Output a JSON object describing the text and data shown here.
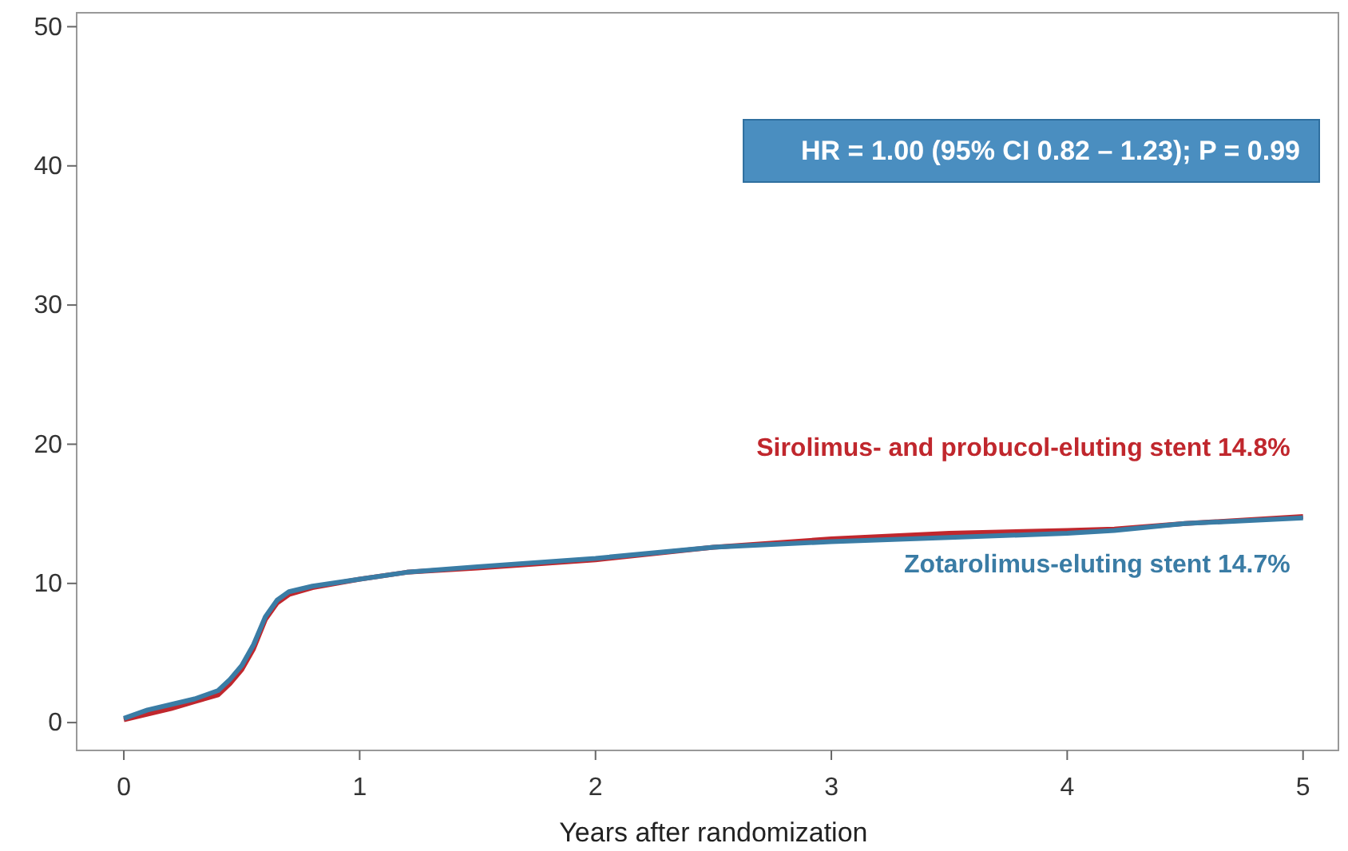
{
  "chart_data": {
    "type": "line",
    "xlabel": "Years after randomization",
    "xlim": [
      -0.2,
      5.15
    ],
    "ylim": [
      -2,
      51
    ],
    "xticks": [
      0,
      1,
      2,
      3,
      4,
      5
    ],
    "yticks": [
      0,
      10,
      20,
      30,
      40,
      50
    ],
    "grid": false,
    "legend": false,
    "marker": "none",
    "line_style": "solid",
    "annotations": [
      "HR = 1.00 (95% CI 0.82 – 1.23); P = 0.99"
    ],
    "series": [
      {
        "name": "Sirolimus- and probucol-eluting stent 14.8%",
        "color": "#c0272d",
        "x": [
          0,
          0.1,
          0.2,
          0.3,
          0.4,
          0.45,
          0.5,
          0.55,
          0.6,
          0.65,
          0.7,
          0.8,
          1,
          1.2,
          1.5,
          2,
          2.5,
          3,
          3.5,
          4,
          4.2,
          4.5,
          5
        ],
        "values": [
          0.2,
          0.6,
          1.0,
          1.5,
          2.0,
          2.8,
          3.8,
          5.3,
          7.4,
          8.6,
          9.2,
          9.7,
          10.3,
          10.8,
          11.1,
          11.7,
          12.6,
          13.2,
          13.6,
          13.8,
          13.9,
          14.3,
          14.8
        ]
      },
      {
        "name": "Zotarolimus-eluting stent 14.7%",
        "color": "#3a7ca5",
        "x": [
          0,
          0.1,
          0.2,
          0.3,
          0.4,
          0.45,
          0.5,
          0.55,
          0.6,
          0.65,
          0.7,
          0.8,
          1,
          1.2,
          1.5,
          2,
          2.5,
          3,
          3.5,
          4,
          4.2,
          4.5,
          5
        ],
        "values": [
          0.3,
          0.9,
          1.3,
          1.7,
          2.3,
          3.1,
          4.1,
          5.6,
          7.6,
          8.8,
          9.4,
          9.8,
          10.3,
          10.8,
          11.2,
          11.8,
          12.6,
          13.0,
          13.3,
          13.6,
          13.8,
          14.3,
          14.7
        ]
      }
    ]
  }
}
